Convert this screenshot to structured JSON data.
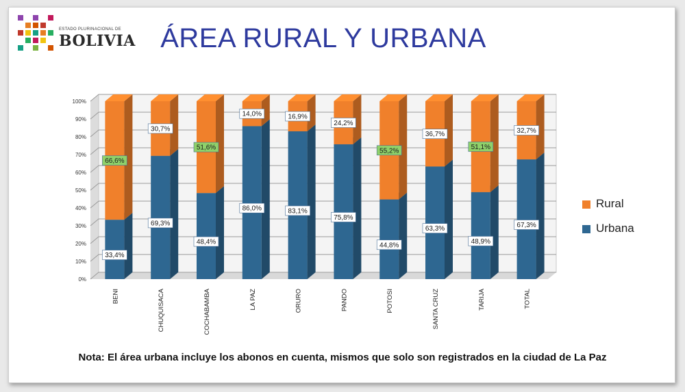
{
  "header": {
    "logo_small_text": "ESTADO PLURINACIONAL DE",
    "logo_name": "BOLIVIA",
    "title": "ÁREA RURAL Y URBANA"
  },
  "footer": {
    "note": "Nota: El área urbana incluye los abonos en cuenta, mismos que solo son registrados en la ciudad de La Paz"
  },
  "colors": {
    "rural": "#f0802b",
    "urbana": "#2e6791",
    "highlight": "#8fd16a",
    "title": "#2e3a9e"
  },
  "chart_data": {
    "type": "bar",
    "stacked": true,
    "three_d": true,
    "categories": [
      "BENI",
      "CHUQUISACA",
      "COCHABAMBA",
      "LA PAZ",
      "ORURO",
      "PANDO",
      "POTOSI",
      "SANTA CRUZ",
      "TARIJA",
      "TOTAL"
    ],
    "series": [
      {
        "name": "Urbana",
        "values": [
          33.4,
          69.3,
          48.4,
          86.0,
          83.1,
          75.8,
          44.8,
          63.3,
          48.9,
          67.3
        ],
        "labels": [
          "33,4%",
          "69,3%",
          "48,4%",
          "86,0%",
          "83,1%",
          "75,8%",
          "44,8%",
          "63,3%",
          "48,9%",
          "67,3%"
        ]
      },
      {
        "name": "Rural",
        "values": [
          66.6,
          30.7,
          51.6,
          14.0,
          16.9,
          24.2,
          55.2,
          36.7,
          51.1,
          32.7
        ],
        "labels": [
          "66,6%",
          "30,7%",
          "51,6%",
          "14,0%",
          "16,9%",
          "24,2%",
          "55,2%",
          "36,7%",
          "51,1%",
          "32,7%"
        ],
        "highlighted": [
          true,
          false,
          true,
          false,
          false,
          false,
          true,
          false,
          true,
          false
        ]
      }
    ],
    "y_ticks": [
      "0%",
      "10%",
      "20%",
      "30%",
      "40%",
      "50%",
      "60%",
      "70%",
      "80%",
      "90%",
      "100%"
    ],
    "ylim": [
      0,
      100
    ],
    "grid": true,
    "legend_position": "right"
  }
}
